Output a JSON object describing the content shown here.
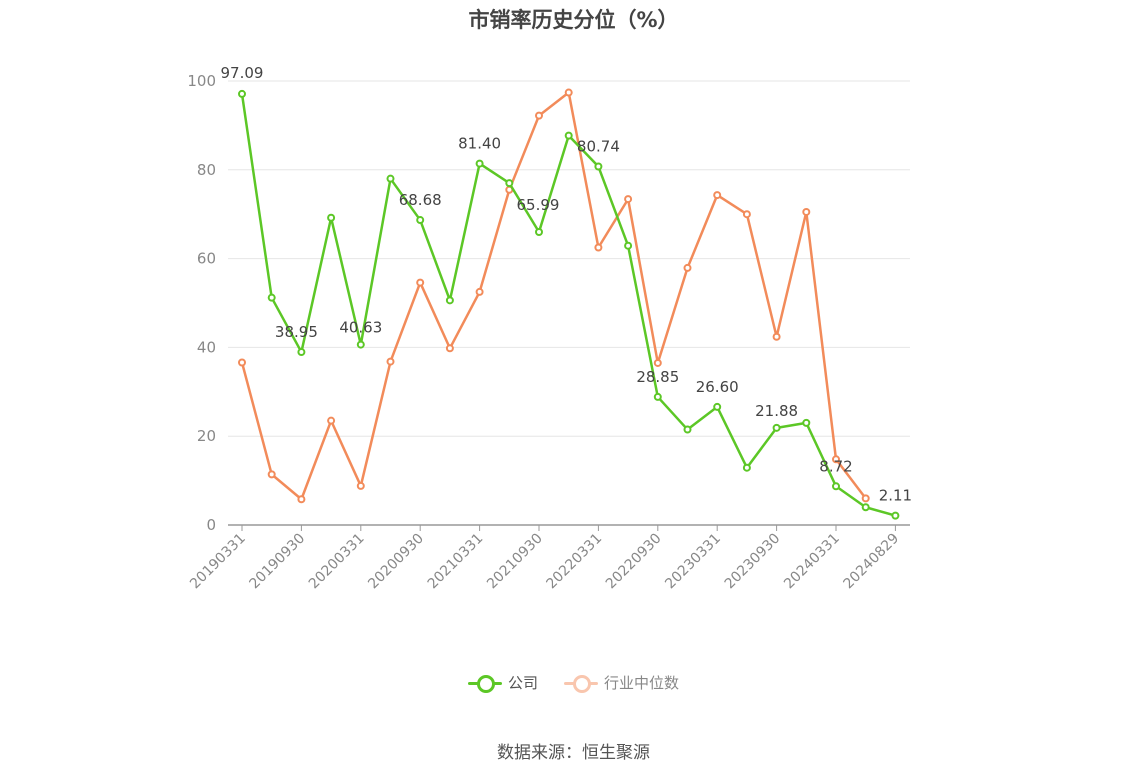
{
  "chart_data": {
    "type": "line",
    "title": "市销率历史分位（%）",
    "source": "数据来源：恒生聚源",
    "ylim": [
      0,
      100
    ],
    "yticks": [
      "0",
      "20",
      "40",
      "60",
      "80",
      "100"
    ],
    "x": [
      "20190331",
      "20190630",
      "20190930",
      "20191231",
      "20200331",
      "20200630",
      "20200930",
      "20201231",
      "20210331",
      "20210630",
      "20210930",
      "20211231",
      "20220331",
      "20220630",
      "20220930",
      "20221231",
      "20230331",
      "20230630",
      "20230930",
      "20231231",
      "20240331",
      "20240630",
      "20240829"
    ],
    "xtick_labels": [
      "20190331",
      "20190930",
      "20200331",
      "20200930",
      "20210331",
      "20210930",
      "20220331",
      "20220930",
      "20230331",
      "20230930",
      "20240331",
      "20240829"
    ],
    "grid": true,
    "legend_position": "bottom",
    "series": [
      {
        "name": "公司",
        "color": "#5cc726",
        "values": [
          97.09,
          51.2,
          38.95,
          69.2,
          40.63,
          78.0,
          68.68,
          50.6,
          81.4,
          77.0,
          65.99,
          87.7,
          80.74,
          62.9,
          28.85,
          21.5,
          26.6,
          12.9,
          21.88,
          23.0,
          8.72,
          4.0,
          2.11
        ],
        "labels": {
          "0": "97.09",
          "2": "38.95",
          "4": "40.63",
          "6": "68.68",
          "8": "81.40",
          "10": "65.99",
          "12": "80.74",
          "14": "28.85",
          "16": "26.60",
          "18": "21.88",
          "20": "8.72",
          "22": "2.11"
        }
      },
      {
        "name": "行业中位数",
        "color": "#f28b5a",
        "values": [
          36.6,
          11.4,
          5.8,
          23.5,
          8.8,
          36.8,
          54.6,
          39.8,
          52.5,
          75.5,
          92.2,
          97.4,
          62.5,
          73.4,
          36.5,
          57.9,
          74.3,
          70.0,
          42.4,
          70.5,
          14.8,
          6.0,
          null
        ]
      }
    ]
  }
}
